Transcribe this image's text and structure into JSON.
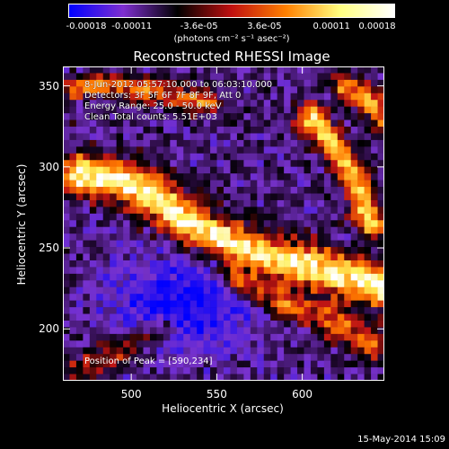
{
  "chart_data": {
    "type": "heatmap",
    "title": "Reconstructed RHESSI Image",
    "xlabel": "Heliocentric X (arcsec)",
    "ylabel": "Heliocentric Y (arcsec)",
    "xlim": [
      460,
      648
    ],
    "ylim": [
      168,
      362
    ],
    "x_ticks": [
      500,
      550,
      600
    ],
    "y_ticks": [
      200,
      250,
      300,
      350
    ],
    "colorbar": {
      "units_text": "(photons cm⁻² s⁻¹ asec⁻²)",
      "range": [
        -0.00018,
        0.00018
      ],
      "ticks": [
        {
          "value": -0.00018,
          "label": "-0.00018"
        },
        {
          "value": -0.00011,
          "label": "-0.00011"
        },
        {
          "value": -3.6e-05,
          "label": "-3.6e-05"
        },
        {
          "value": 3.6e-05,
          "label": "3.6e-05"
        },
        {
          "value": 0.00011,
          "label": "0.00011"
        },
        {
          "value": 0.00018,
          "label": "0.00018"
        }
      ],
      "colors": [
        "#0000ff",
        "#7f2fd0",
        "#000000",
        "#c01010",
        "#ff8000",
        "#ffff80",
        "#ffffff"
      ]
    },
    "annotations": {
      "time": "8-Jun-2012 05:57:10.000 to 06:03:10.000",
      "detectors": "Detectors: 3F 5F 6F 7F 8F 9F, Att 0",
      "energy": "Energy Range: 25.0 - 50.0 keV",
      "method": "Clean     Total counts: 5.51E+03",
      "peak": "Position of Peak = [590,234]"
    },
    "peak_position": [
      590,
      234
    ]
  },
  "footer": {
    "date": "15-May-2014 15:09"
  }
}
